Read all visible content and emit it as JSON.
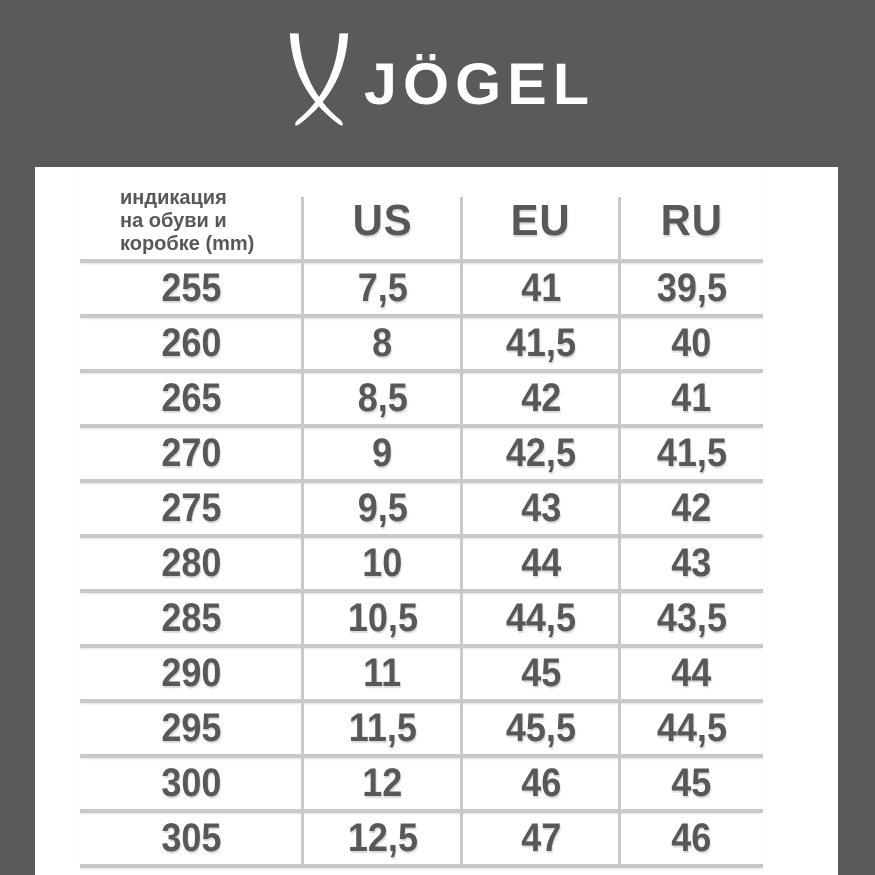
{
  "brand": {
    "name": "JÖGEL"
  },
  "colors": {
    "background": "#5a5a5a",
    "panel": "#ffffff",
    "text_dark": "#58585a",
    "grid_line": "#c9c9c9",
    "logo": "#ffffff"
  },
  "size_chart": {
    "header_note_lines": [
      "индикация",
      "на обуви и",
      "коробке (mm)"
    ]
  },
  "chart_data": {
    "type": "table",
    "columns": [
      "индикация на обуви и коробке (mm)",
      "US",
      "EU",
      "RU"
    ],
    "rows": [
      [
        "255",
        "7,5",
        "41",
        "39,5"
      ],
      [
        "260",
        "8",
        "41,5",
        "40"
      ],
      [
        "265",
        "8,5",
        "42",
        "41"
      ],
      [
        "270",
        "9",
        "42,5",
        "41,5"
      ],
      [
        "275",
        "9,5",
        "43",
        "42"
      ],
      [
        "280",
        "10",
        "44",
        "43"
      ],
      [
        "285",
        "10,5",
        "44,5",
        "43,5"
      ],
      [
        "290",
        "11",
        "45",
        "44"
      ],
      [
        "295",
        "11,5",
        "45,5",
        "44,5"
      ],
      [
        "300",
        "12",
        "46",
        "45"
      ],
      [
        "305",
        "12,5",
        "47",
        "46"
      ]
    ]
  }
}
